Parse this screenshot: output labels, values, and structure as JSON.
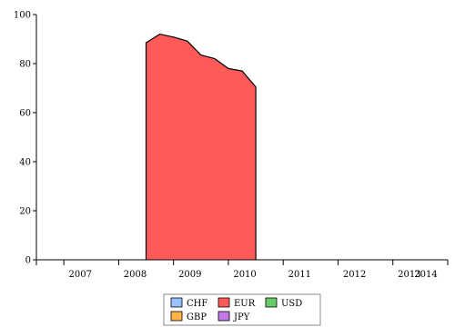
{
  "chart_data": {
    "type": "area",
    "title": "",
    "xlabel": "",
    "ylabel": "",
    "ylim": [
      0,
      100
    ],
    "yticks": [
      "0",
      "20",
      "40",
      "60",
      "80",
      "100"
    ],
    "xlim": [
      2006.5,
      2014.0
    ],
    "xticks": [
      "2007",
      "2008",
      "2009",
      "2010",
      "2011",
      "2012",
      "2013",
      "2014"
    ],
    "grid": false,
    "legend_position": "bottom-center",
    "series": [
      {
        "name": "EUR",
        "color": "#ff5a5a",
        "points": [
          {
            "x": "2008-07",
            "y": 0
          },
          {
            "x": "2008-07",
            "y": 88.5
          },
          {
            "x": "2008-10",
            "y": 92
          },
          {
            "x": "2009-01",
            "y": 90.8
          },
          {
            "x": "2009-04",
            "y": 89.2
          },
          {
            "x": "2009-07",
            "y": 83.5
          },
          {
            "x": "2009-10",
            "y": 82
          },
          {
            "x": "2010-01",
            "y": 78
          },
          {
            "x": "2010-04",
            "y": 77
          },
          {
            "x": "2010-07",
            "y": 70.5
          },
          {
            "x": "2010-07",
            "y": 0
          }
        ]
      }
    ],
    "legend": [
      {
        "name": "CHF",
        "color": "#99c2ff"
      },
      {
        "name": "EUR",
        "color": "#ff5a5a"
      },
      {
        "name": "USD",
        "color": "#66cc66"
      },
      {
        "name": "GBP",
        "color": "#ffb347"
      },
      {
        "name": "JPY",
        "color": "#c27ae8"
      }
    ]
  }
}
